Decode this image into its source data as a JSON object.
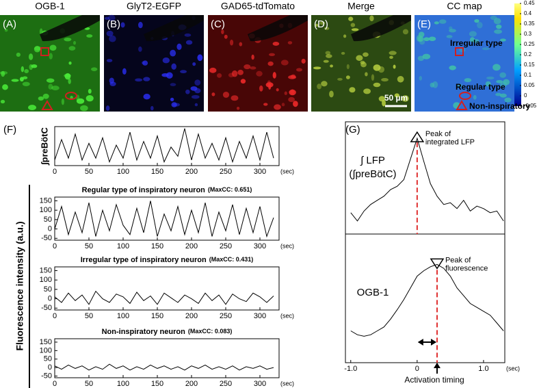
{
  "images": [
    {
      "label": "(A)",
      "title": "OGB-1"
    },
    {
      "label": "(B)",
      "title": "GlyT2-EGFP"
    },
    {
      "label": "(C)",
      "title": "GAD65-tdTomato"
    },
    {
      "label": "(D)",
      "title": "Merge",
      "scale_bar": "50 µm"
    },
    {
      "label": "(E)",
      "title": "CC map",
      "annotations": [
        "Irregular type",
        "Regular type",
        "Non-inspiratory"
      ]
    }
  ],
  "colorbar": {
    "lim": [
      -0.05,
      0.45
    ],
    "ticks": [
      0.45,
      0.4,
      0.35,
      0.3,
      0.25,
      0.2,
      0.15,
      0.1,
      0.05,
      0,
      -0.05
    ]
  },
  "panel_f": {
    "label": "(F)",
    "ylabel": "Fluorescence intensity (a.u.)"
  },
  "panel_g": {
    "label": "(G)",
    "annotation": "Activation timing"
  },
  "chart_data": [
    {
      "type": "line",
      "ylabel": "∫preBötC",
      "xunit": "(sec)",
      "color": "#000000",
      "x": [
        0,
        10,
        20,
        30,
        40,
        50,
        60,
        70,
        80,
        90,
        100,
        110,
        120,
        130,
        140,
        150,
        160,
        170,
        180,
        190,
        200,
        210,
        220,
        230,
        240,
        250,
        260,
        270,
        280,
        290,
        300,
        310,
        320
      ],
      "values": [
        0.15,
        0.7,
        0.2,
        0.85,
        0.15,
        0.6,
        0.2,
        0.75,
        0.1,
        0.55,
        0.2,
        0.9,
        0.15,
        0.65,
        0.2,
        0.8,
        0.1,
        0.5,
        0.25,
        1.0,
        0.15,
        0.85,
        0.2,
        0.6,
        0.15,
        0.75,
        0.1,
        0.65,
        0.2,
        0.8,
        0.15,
        0.9,
        0.2
      ],
      "xlim": [
        0,
        328
      ],
      "xticks": [
        0,
        50,
        100,
        150,
        200,
        250,
        300
      ],
      "ylim": [
        0,
        1.05
      ]
    },
    {
      "type": "line",
      "title": "Regular type of inspiratory neuron",
      "maxcc": "(MaxCC: 0.651)",
      "xunit": "(sec)",
      "color": "#000000",
      "x": [
        0,
        10,
        20,
        30,
        40,
        50,
        60,
        70,
        80,
        90,
        100,
        110,
        120,
        130,
        140,
        150,
        160,
        170,
        180,
        190,
        200,
        210,
        220,
        230,
        240,
        250,
        260,
        270,
        280,
        290,
        300,
        310,
        320
      ],
      "values": [
        0,
        120,
        -30,
        90,
        -20,
        140,
        -40,
        100,
        -10,
        130,
        20,
        -30,
        110,
        -20,
        150,
        -40,
        80,
        -10,
        120,
        -30,
        100,
        -20,
        140,
        -40,
        90,
        -10,
        130,
        -30,
        110,
        -20,
        120,
        -40,
        60
      ],
      "xlim": [
        0,
        328
      ],
      "xticks": [
        0,
        50,
        100,
        150,
        200,
        250,
        300
      ],
      "ylim": [
        -60,
        170
      ],
      "yticks": [
        -50,
        0,
        50,
        100,
        150
      ]
    },
    {
      "type": "line",
      "title": "Irregular type of inspiratory neuron",
      "maxcc": "(MaxCC: 0.431)",
      "xunit": "(sec)",
      "color": "#000000",
      "x": [
        0,
        10,
        20,
        30,
        40,
        50,
        60,
        70,
        80,
        90,
        100,
        110,
        120,
        130,
        140,
        150,
        160,
        170,
        180,
        190,
        200,
        210,
        220,
        230,
        240,
        250,
        260,
        270,
        280,
        290,
        300,
        310,
        320
      ],
      "values": [
        10,
        -20,
        30,
        -10,
        20,
        -30,
        40,
        0,
        -20,
        25,
        10,
        -25,
        35,
        -10,
        15,
        -30,
        30,
        5,
        -20,
        20,
        0,
        -25,
        30,
        -10,
        20,
        -30,
        25,
        0,
        -15,
        30,
        10,
        -20,
        15
      ],
      "xlim": [
        0,
        328
      ],
      "xticks": [
        0,
        50,
        100,
        150,
        200,
        250,
        300
      ],
      "ylim": [
        -60,
        170
      ],
      "yticks": [
        -50,
        0,
        50,
        100,
        150
      ]
    },
    {
      "type": "line",
      "title": "Non-inspiratory neuron",
      "maxcc": "(MaxCC: 0.083)",
      "xunit": "(sec)",
      "color": "#000000",
      "x": [
        0,
        10,
        20,
        30,
        40,
        50,
        60,
        70,
        80,
        90,
        100,
        110,
        120,
        130,
        140,
        150,
        160,
        170,
        180,
        190,
        200,
        210,
        220,
        230,
        240,
        250,
        260,
        270,
        280,
        290,
        300,
        310,
        320
      ],
      "values": [
        10,
        -10,
        15,
        -5,
        10,
        -15,
        5,
        -10,
        20,
        -5,
        10,
        -15,
        5,
        -10,
        15,
        -5,
        10,
        -10,
        5,
        -15,
        10,
        -5,
        15,
        -10,
        5,
        -10,
        10,
        -15,
        5,
        -5,
        10,
        -10,
        0
      ],
      "xlim": [
        0,
        328
      ],
      "xticks": [
        0,
        50,
        100,
        150,
        200,
        250,
        300
      ],
      "ylim": [
        -60,
        170
      ],
      "yticks": [
        -50,
        0,
        50,
        100,
        150
      ]
    },
    {
      "type": "line",
      "labels": [
        "∫ LFP",
        "(∫preBötC)"
      ],
      "peak_label": [
        "Peak of",
        "integrated LFP"
      ],
      "color": "#000000",
      "x": [
        -1.0,
        -0.9,
        -0.8,
        -0.7,
        -0.6,
        -0.5,
        -0.4,
        -0.3,
        -0.2,
        -0.1,
        0,
        0.1,
        0.2,
        0.3,
        0.4,
        0.5,
        0.6,
        0.7,
        0.8,
        0.9,
        1.0,
        1.1,
        1.2,
        1.3
      ],
      "values": [
        0.1,
        0.0,
        0.12,
        0.2,
        0.25,
        0.3,
        0.38,
        0.42,
        0.5,
        0.75,
        1.0,
        0.72,
        0.45,
        0.3,
        0.2,
        0.22,
        0.15,
        0.25,
        0.12,
        0.18,
        0.15,
        0.1,
        0.12,
        0.0
      ],
      "xlim": [
        -1.08,
        1.32
      ],
      "ylim": [
        -0.1,
        1.1
      ]
    },
    {
      "type": "line",
      "labels": [
        "OGB-1"
      ],
      "peak_label": [
        "Peak of",
        "fluorescence"
      ],
      "xunit": "(sec)",
      "color": "#000000",
      "x": [
        -1.0,
        -0.9,
        -0.8,
        -0.7,
        -0.6,
        -0.5,
        -0.4,
        -0.3,
        -0.2,
        -0.1,
        0,
        0.1,
        0.2,
        0.3,
        0.4,
        0.5,
        0.6,
        0.7,
        0.8,
        0.9,
        1.0,
        1.1,
        1.2,
        1.3
      ],
      "values": [
        0.15,
        0.1,
        0.08,
        0.1,
        0.15,
        0.2,
        0.3,
        0.42,
        0.55,
        0.7,
        0.85,
        0.92,
        0.97,
        1.0,
        0.95,
        0.85,
        0.7,
        0.6,
        0.5,
        0.45,
        0.4,
        0.35,
        0.25,
        0.15
      ],
      "xlim": [
        -1.08,
        1.32
      ],
      "ylim": [
        -0.1,
        1.1
      ],
      "xticks": [
        {
          "value": -1,
          "label": "-1.0"
        },
        0,
        {
          "value": 1,
          "label": "1.0"
        }
      ]
    }
  ]
}
